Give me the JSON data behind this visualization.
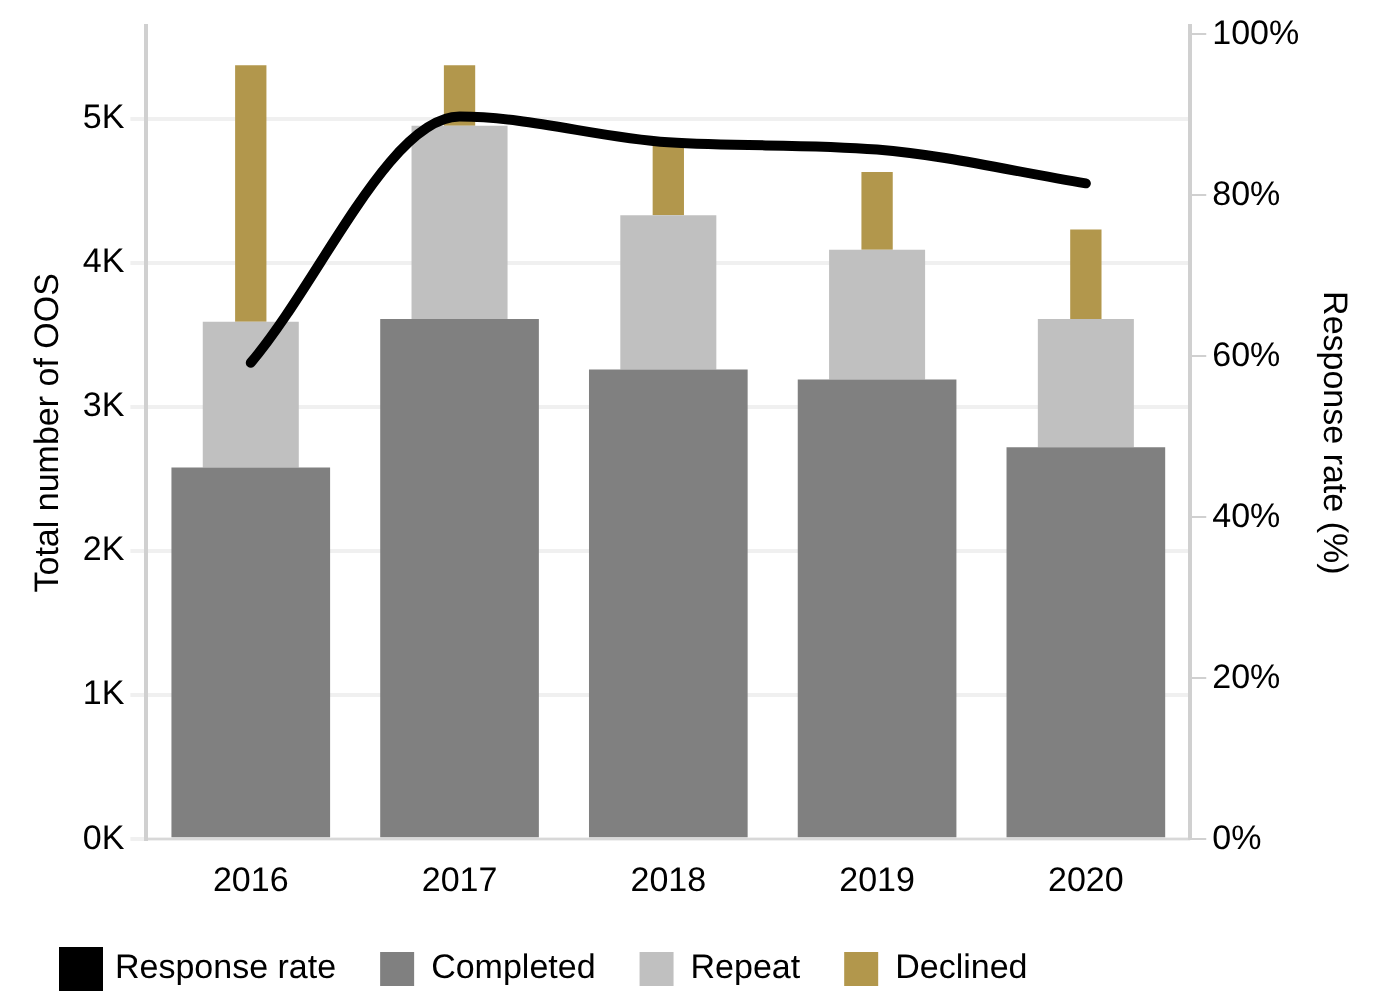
{
  "chart_data": {
    "type": "bar",
    "stacked": true,
    "categories": [
      "2016",
      "2017",
      "2018",
      "2019",
      "2020"
    ],
    "series": [
      {
        "name": "Completed",
        "color": "#808080",
        "values": [
          2580,
          3610,
          3260,
          3190,
          2720
        ]
      },
      {
        "name": "Repeat",
        "color": "#c0c0c0",
        "values": [
          1010,
          1340,
          1070,
          900,
          890
        ]
      },
      {
        "name": "Declined",
        "color": "#b2974c",
        "values": [
          1780,
          420,
          500,
          540,
          620
        ]
      },
      {
        "name": "Response rate",
        "type": "line",
        "axis": "y2",
        "color": "#000000",
        "values": [
          59.2,
          89.8,
          86.6,
          85.7,
          81.5
        ]
      }
    ],
    "ylabel": "Total number of OOS",
    "y2label": "Response rate (%)",
    "ylim": [
      0,
      5640
    ],
    "yticks": [
      {
        "value": 0,
        "label": "0K"
      },
      {
        "value": 1000,
        "label": "1K"
      },
      {
        "value": 2000,
        "label": "2K"
      },
      {
        "value": 3000,
        "label": "3K"
      },
      {
        "value": 4000,
        "label": "4K"
      },
      {
        "value": 5000,
        "label": "5K"
      }
    ],
    "y2lim": [
      0,
      101
    ],
    "y2ticks": [
      {
        "value": 0,
        "label": "0%"
      },
      {
        "value": 20,
        "label": "20%"
      },
      {
        "value": 40,
        "label": "40%"
      },
      {
        "value": 60,
        "label": "60%"
      },
      {
        "value": 80,
        "label": "80%"
      },
      {
        "value": 100,
        "label": "100%"
      }
    ],
    "grid": "y",
    "legend": "bottom",
    "marker": "none",
    "line_style": "solid"
  }
}
